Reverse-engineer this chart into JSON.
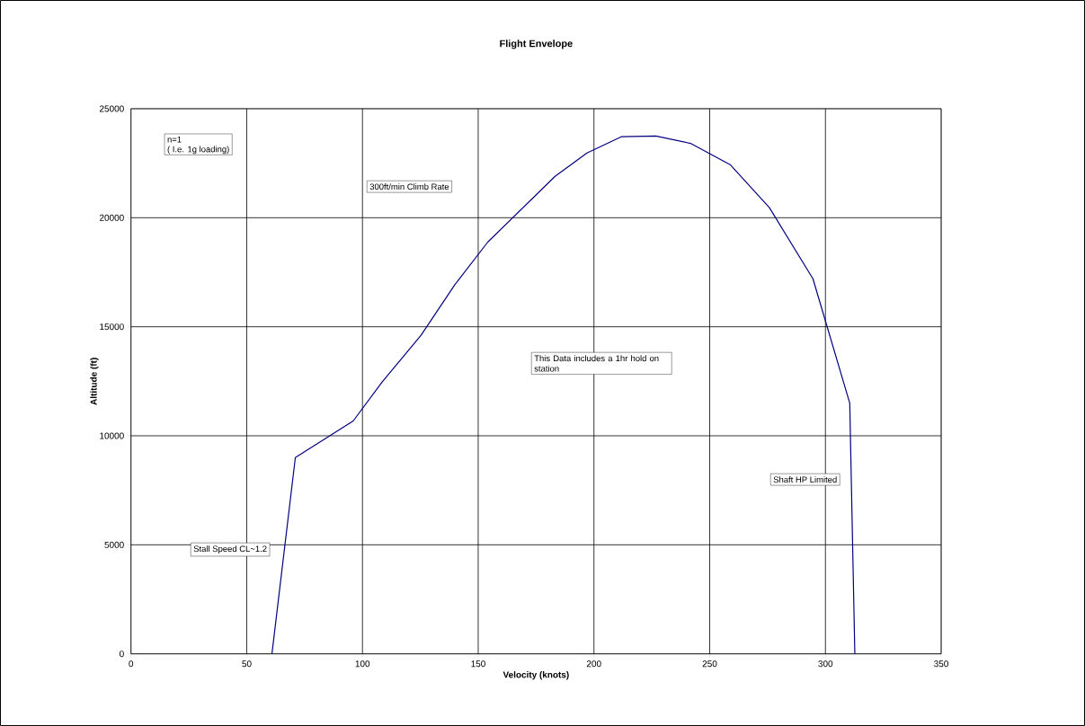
{
  "chart_data": {
    "type": "line",
    "title": "Flight Envelope",
    "xlabel": "Velocity (knots)",
    "ylabel": "Altitude (ft)",
    "x": [
      60.9,
      71.0,
      96.0,
      108.5,
      125.3,
      139.9,
      154.1,
      183.2,
      197.0,
      212.0,
      226.7,
      241.7,
      259.0,
      275.8,
      294.6,
      310.5,
      312.7
    ],
    "series": [
      {
        "color": "#000080",
        "values": [
          0,
          9000,
          10680,
          12470,
          14610,
          16930,
          18880,
          21900,
          22970,
          23720,
          23750,
          23410,
          22420,
          20460,
          17200,
          11500,
          0
        ]
      }
    ],
    "xlim": [
      0,
      350
    ],
    "ylim": [
      0,
      25000
    ],
    "xticks": [
      0,
      50,
      100,
      150,
      200,
      250,
      300,
      350
    ],
    "yticks": [
      0,
      5000,
      10000,
      15000,
      20000,
      25000
    ],
    "grid": true,
    "marker": "none",
    "line_style": "solid",
    "annotations": [
      "n=1",
      "( I.e. 1g loading)",
      "This Data includes a 1hr hold on station",
      "300ft/min Climb Rate",
      "Stall Speed CL~1.2",
      "Shaft HP Limited"
    ]
  }
}
